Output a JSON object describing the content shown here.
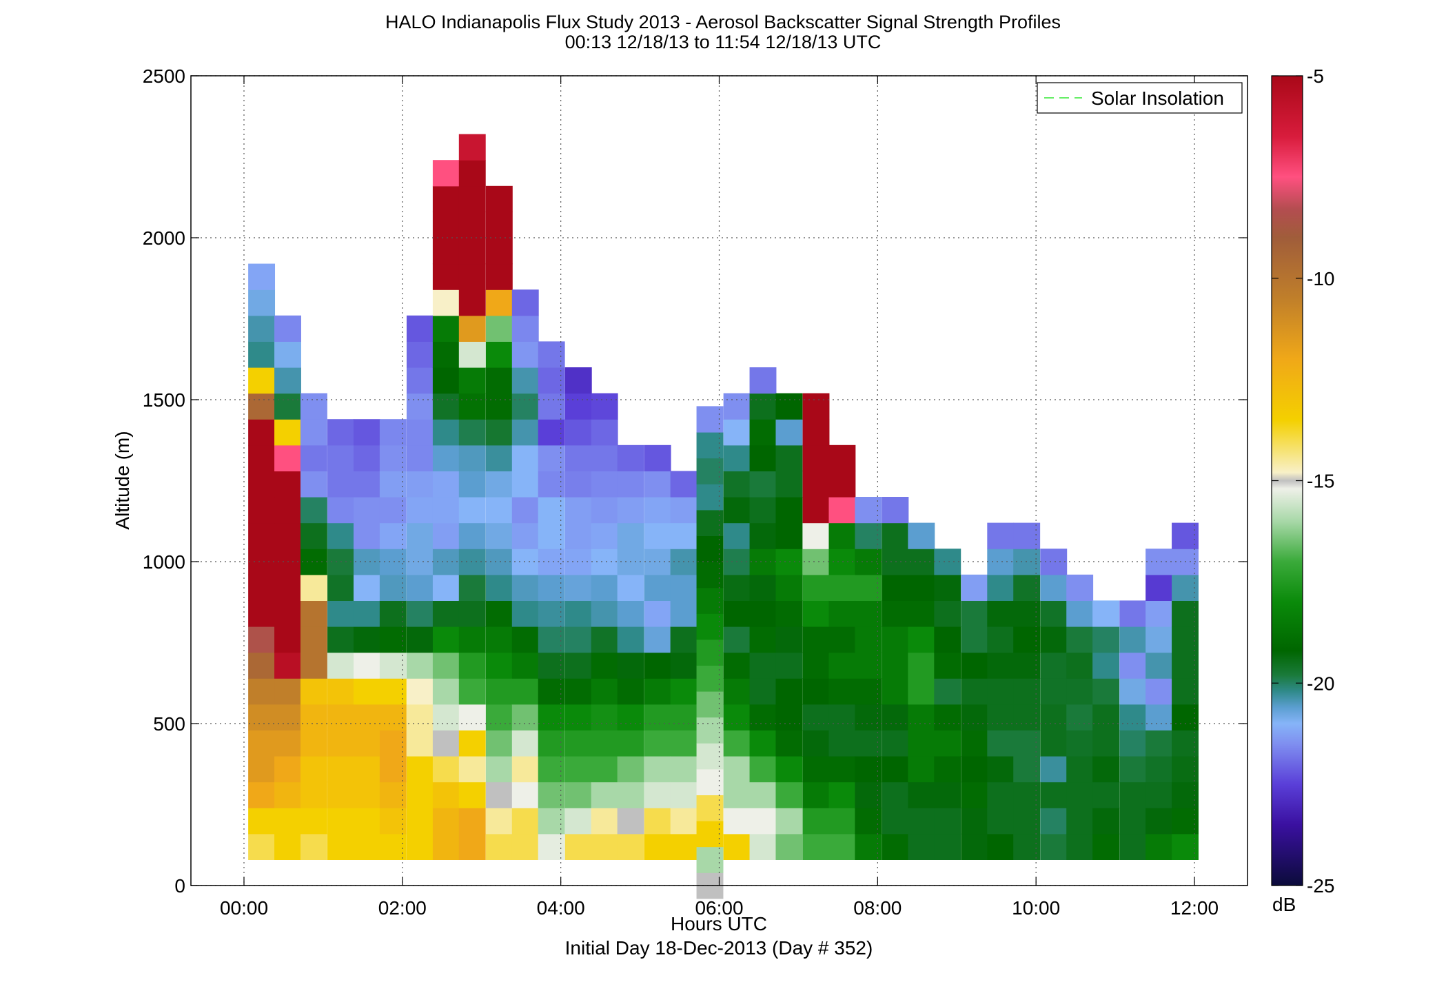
{
  "chart_data": {
    "type": "heatmap",
    "title": "HALO Indianapolis Flux Study 2013 - Aerosol Backscatter Signal Strength Profiles",
    "subtitle": "00:13 12/18/13 to 11:54 12/18/13  UTC",
    "xlabel": "Hours UTC",
    "xlabel2": "Initial Day 18-Dec-2013 (Day # 352)",
    "ylabel": "Altitude (m)",
    "xlim_hours": [
      -0.67,
      12.67
    ],
    "ylim": [
      0,
      2500
    ],
    "x_ticks": [
      "00:00",
      "02:00",
      "04:00",
      "06:00",
      "08:00",
      "10:00",
      "12:00"
    ],
    "y_ticks": [
      0,
      500,
      1000,
      1500,
      2000,
      2500
    ],
    "grid": "dotted",
    "legend": {
      "label": "Solar Insolation",
      "placement": "top-right",
      "line_color": "#66ee66"
    },
    "colorbar": {
      "label": "dB",
      "min": -25,
      "max": -5,
      "ticks": [
        -5,
        -10,
        -15,
        -20,
        -25
      ],
      "stops": [
        [
          -25,
          "#0b0b3a"
        ],
        [
          -23.5,
          "#3a10a0"
        ],
        [
          -22.5,
          "#5a3fd8"
        ],
        [
          -21.5,
          "#7f8ff0"
        ],
        [
          -21,
          "#86b4f8"
        ],
        [
          -20.6,
          "#5b9ed0"
        ],
        [
          -20.2,
          "#2f8a8a"
        ],
        [
          -19.8,
          "#1a7a3a"
        ],
        [
          -19.2,
          "#006600"
        ],
        [
          -18,
          "#0a8a0a"
        ],
        [
          -17,
          "#3aaa3a"
        ],
        [
          -16,
          "#a8d8a8"
        ],
        [
          -15.2,
          "#eef0e8"
        ],
        [
          -15,
          "#c0c0c0"
        ],
        [
          -14.8,
          "#f8f0c8"
        ],
        [
          -13.5,
          "#f4d000"
        ],
        [
          -12,
          "#f0a818"
        ],
        [
          -10.5,
          "#c07f2a"
        ],
        [
          -9,
          "#a05d3a"
        ],
        [
          -8.3,
          "#b34d50"
        ],
        [
          -7.5,
          "#ff5080"
        ],
        [
          -6.5,
          "#d81c3c"
        ],
        [
          -5,
          "#a90818"
        ]
      ]
    },
    "bin_width_hours": 0.3333,
    "bin_height_m": 80,
    "profiles": [
      {
        "t": 0.22,
        "base": 80,
        "dB": [
          -14,
          -13.5,
          -12,
          -11.5,
          -11.5,
          -11,
          -10.5,
          -9.5,
          -8.5,
          -5,
          -5,
          -5,
          -5,
          -5,
          -5,
          -5,
          -5,
          -9.5,
          -13.5,
          -20.2,
          -20.4,
          -20.8,
          -21.2
        ]
      },
      {
        "t": 0.55,
        "base": 80,
        "dB": [
          -13.5,
          -13.5,
          -12.5,
          -12,
          -11.5,
          -11,
          -10.5,
          -5.5,
          -5,
          -5,
          -5,
          -5,
          -5,
          -5,
          -5,
          -7.5,
          -13.5,
          -19.8,
          -20.4,
          -20.9,
          -21.6
        ]
      },
      {
        "t": 0.88,
        "base": 80,
        "dB": [
          -14,
          -13.5,
          -13,
          -13,
          -12.5,
          -12.5,
          -13,
          -10,
          -10,
          -10,
          -14.5,
          -19,
          -19.5,
          -20,
          -21.5,
          -21.8,
          -21.5,
          -21.5
        ]
      },
      {
        "t": 1.22,
        "base": 80,
        "dB": [
          -13.5,
          -13.5,
          -13,
          -13,
          -12.5,
          -12.5,
          -13,
          -15.5,
          -19.5,
          -20.2,
          -19.6,
          -19.8,
          -20.2,
          -21.6,
          -21.8,
          -21.8,
          -22.0
        ]
      },
      {
        "t": 1.55,
        "base": 80,
        "dB": [
          -13.5,
          -13.5,
          -13,
          -13,
          -12.5,
          -12.5,
          -13.5,
          -15.2,
          -19.3,
          -20.2,
          -21,
          -20.5,
          -21.5,
          -21.5,
          -21.8,
          -22.0,
          -22.2
        ]
      },
      {
        "t": 1.88,
        "base": 80,
        "dB": [
          -13.5,
          -13,
          -12.5,
          -12,
          -12,
          -12.5,
          -13.5,
          -15.5,
          -19,
          -19.5,
          -20.5,
          -20.6,
          -21.2,
          -21.5,
          -21.3,
          -21.5,
          -21.6
        ]
      },
      {
        "t": 2.22,
        "base": 80,
        "dB": [
          -13.5,
          -13.5,
          -13.5,
          -13.5,
          -14.5,
          -14.5,
          -14.8,
          -16,
          -19.3,
          -20,
          -20.6,
          -20.8,
          -20.8,
          -21.2,
          -21.3,
          -21.6,
          -21.6,
          -21.5,
          -21.8,
          -22.0,
          -22.2
        ]
      },
      {
        "t": 2.55,
        "base": 80,
        "dB": [
          -12.5,
          -12.5,
          -13,
          -14,
          -15,
          -15.5,
          -16,
          -16.5,
          -18,
          -19.5,
          -21,
          -20.5,
          -21.3,
          -21.2,
          -21.2,
          -20.6,
          -20.2,
          -19.6,
          -19.2,
          -19,
          -18.5,
          -14.8,
          -5,
          -5,
          -5,
          -5,
          -7.5
        ]
      },
      {
        "t": 2.88,
        "base": 80,
        "dB": [
          -12,
          -12,
          -13.5,
          -14.5,
          -13.5,
          -15.2,
          -17,
          -17.5,
          -18.5,
          -19.5,
          -19.8,
          -20.3,
          -20.6,
          -21.0,
          -20.6,
          -20.5,
          -19.9,
          -18.8,
          -18.5,
          -15.5,
          -11.5,
          -5,
          -5,
          -5,
          -5,
          -5,
          -5,
          -6
        ]
      },
      {
        "t": 3.22,
        "base": 80,
        "dB": [
          -14,
          -14.5,
          -15,
          -16,
          -16.5,
          -17,
          -17.5,
          -18,
          -18.5,
          -19,
          -20.2,
          -20.5,
          -20.8,
          -21.0,
          -20.8,
          -20.3,
          -19.7,
          -19,
          -19,
          -18,
          -16.5,
          -12,
          -5,
          -5,
          -5,
          -5
        ]
      },
      {
        "t": 3.55,
        "base": 80,
        "dB": [
          -14,
          -14,
          -15.2,
          -14.5,
          -15.5,
          -16.5,
          -17.5,
          -18.5,
          -19,
          -20.2,
          -20.5,
          -21.0,
          -21.3,
          -21.5,
          -21.0,
          -21.0,
          -20.4,
          -20.0,
          -20.4,
          -21.4,
          -21.6,
          -22.0
        ]
      },
      {
        "t": 3.88,
        "base": 80,
        "dB": [
          -15.3,
          -16,
          -16.5,
          -17,
          -17.5,
          -18,
          -19,
          -19.5,
          -20,
          -20.3,
          -20.6,
          -21.2,
          -21.0,
          -21.0,
          -21.6,
          -21.5,
          -22.5,
          -21.8,
          -22.0,
          -21.8
        ]
      },
      {
        "t": 4.22,
        "base": 80,
        "dB": [
          -14,
          -15.5,
          -16.5,
          -17,
          -17.5,
          -18,
          -19,
          -19.5,
          -20,
          -20.2,
          -20.7,
          -21.2,
          -21.3,
          -21.3,
          -21.7,
          -21.8,
          -22.2,
          -22.5,
          -22.8
        ]
      },
      {
        "t": 4.55,
        "base": 80,
        "dB": [
          -14,
          -14.5,
          -16,
          -17,
          -17.5,
          -17.8,
          -18.5,
          -19,
          -19.6,
          -20.4,
          -20.6,
          -21.0,
          -21.2,
          -21.4,
          -21.6,
          -21.8,
          -22.0,
          -22.4
        ]
      },
      {
        "t": 4.88,
        "base": 80,
        "dB": [
          -14,
          -15,
          -16,
          -16.5,
          -17.5,
          -18,
          -19,
          -19.3,
          -20.2,
          -20.6,
          -21,
          -20.8,
          -20.8,
          -21.3,
          -21.6,
          -22.0
        ]
      },
      {
        "t": 5.22,
        "base": 80,
        "dB": [
          -13.5,
          -14,
          -15.5,
          -16,
          -17,
          -17.5,
          -18.5,
          -19.2,
          -20.7,
          -21.2,
          -20.6,
          -20.8,
          -21.0,
          -21.2,
          -21.5,
          -22.2
        ]
      },
      {
        "t": 5.55,
        "base": 80,
        "dB": [
          -13.5,
          -14.5,
          -15.5,
          -16,
          -17,
          -17.5,
          -18,
          -19.3,
          -19.5,
          -20.6,
          -20.6,
          -20.4,
          -21.0,
          -21.3,
          -22.0
        ]
      },
      {
        "t": 5.88,
        "base": -40,
        "dB": [
          -15,
          -16,
          -13.5,
          -14,
          -15.2,
          -15.5,
          -16,
          -16.5,
          -17,
          -17.5,
          -18,
          -18.5,
          -19,
          -19.2,
          -19.5,
          -20.2,
          -20,
          -20.2,
          -21.5
        ]
      },
      {
        "t": 6.22,
        "base": 80,
        "dB": [
          -13.5,
          -15.2,
          -16,
          -16,
          -17,
          -18,
          -18.5,
          -19,
          -19.8,
          -19.2,
          -19.4,
          -19.9,
          -20.2,
          -19.3,
          -19.6,
          -20.2,
          -21.0,
          -21.5
        ]
      },
      {
        "t": 6.55,
        "base": 80,
        "dB": [
          -15.5,
          -15.2,
          -16,
          -17,
          -18,
          -19,
          -19.5,
          -19.5,
          -19,
          -19.2,
          -19.3,
          -18.5,
          -19.3,
          -19.5,
          -19.8,
          -19.2,
          -19.0,
          -19.5,
          -21.8
        ]
      },
      {
        "t": 6.88,
        "base": 80,
        "dB": [
          -16.5,
          -16,
          -17,
          -18,
          -19,
          -19.2,
          -19.2,
          -19.5,
          -19.3,
          -19,
          -18.5,
          -18,
          -19.2,
          -19.2,
          -19.5,
          -19.5,
          -20.6,
          -19.2
        ]
      },
      {
        "t": 7.22,
        "base": 80,
        "dB": [
          -17,
          -17.5,
          -18.5,
          -19,
          -19.3,
          -19.5,
          -19.2,
          -19,
          -19,
          -18,
          -17.5,
          -16.5,
          -15.2,
          -5,
          -5,
          -5,
          -5,
          -5
        ]
      },
      {
        "t": 7.55,
        "base": 80,
        "dB": [
          -17,
          -17.5,
          -18,
          -19,
          -19.5,
          -19.5,
          -19,
          -18.5,
          -19,
          -18.5,
          -17.5,
          -18,
          -18.5,
          -7.5,
          -5,
          -5
        ]
      },
      {
        "t": 7.88,
        "base": 80,
        "dB": [
          -18.5,
          -19,
          -19.3,
          -19.2,
          -19.5,
          -19.3,
          -19,
          -18.5,
          -18.5,
          -18.5,
          -17.5,
          -18.5,
          -20,
          -21.5
        ]
      },
      {
        "t": 8.22,
        "base": 80,
        "dB": [
          -19,
          -19.5,
          -19.5,
          -19.2,
          -19.5,
          -19.3,
          -18.5,
          -18.5,
          -18.5,
          -19,
          -19.2,
          -19.5,
          -19.5,
          -21.8
        ]
      },
      {
        "t": 8.55,
        "base": 80,
        "dB": [
          -19.5,
          -19.5,
          -19.3,
          -18.5,
          -18.5,
          -18.5,
          -17.5,
          -17.5,
          -18,
          -19,
          -19.2,
          -19.5,
          -20.6
        ]
      },
      {
        "t": 8.88,
        "base": 80,
        "dB": [
          -19.5,
          -19.5,
          -19.3,
          -19,
          -18.5,
          -19,
          -19.8,
          -19,
          -19.2,
          -19.5,
          -19.3,
          -20.2
        ]
      },
      {
        "t": 9.22,
        "base": 80,
        "dB": [
          -19.3,
          -19.3,
          -19,
          -19.2,
          -19,
          -19.3,
          -19.5,
          -19.2,
          -19.8,
          -19.8,
          -21.3
        ]
      },
      {
        "t": 9.55,
        "base": 80,
        "dB": [
          -19.2,
          -19.5,
          -19.5,
          -19.3,
          -19.8,
          -19.5,
          -19.5,
          -19.3,
          -19.5,
          -19.3,
          -20.2,
          -20.6,
          -21.8
        ]
      },
      {
        "t": 9.88,
        "base": 80,
        "dB": [
          -19.5,
          -19.5,
          -19.5,
          -19.8,
          -19.8,
          -19.5,
          -19.5,
          -19.3,
          -19.2,
          -19.3,
          -19.6,
          -20.4,
          -21.8
        ]
      },
      {
        "t": 10.22,
        "base": 80,
        "dB": [
          -19.8,
          -20.0,
          -19.5,
          -20.3,
          -19.5,
          -19.5,
          -19.6,
          -19.6,
          -19.3,
          -19.6,
          -20.6,
          -21.8
        ]
      },
      {
        "t": 10.55,
        "base": 80,
        "dB": [
          -19.5,
          -19.5,
          -19.5,
          -19.5,
          -19.6,
          -19.8,
          -19.6,
          -19.5,
          -19.8,
          -20.6,
          -21.5
        ]
      },
      {
        "t": 10.88,
        "base": 80,
        "dB": [
          -19,
          -19.3,
          -19.5,
          -19.3,
          -19.5,
          -19.5,
          -19.8,
          -20.2,
          -20.0,
          -21.0
        ]
      },
      {
        "t": 11.22,
        "base": 80,
        "dB": [
          -19.5,
          -19.5,
          -19.5,
          -19.8,
          -20.0,
          -20.2,
          -20.8,
          -21.5,
          -20.4,
          -21.8
        ]
      },
      {
        "t": 11.55,
        "base": 80,
        "dB": [
          -18.5,
          -19.3,
          -19.5,
          -19.6,
          -19.8,
          -20.6,
          -21.5,
          -20.4,
          -20.8,
          -21.3,
          -22.6,
          -21.5
        ]
      },
      {
        "t": 11.88,
        "base": 80,
        "dB": [
          -18,
          -19,
          -19.3,
          -19.4,
          -19.5,
          -19.2,
          -19.5,
          -19.5,
          -19.5,
          -19.5,
          -20.4,
          -21.5,
          -22.2
        ]
      }
    ]
  }
}
